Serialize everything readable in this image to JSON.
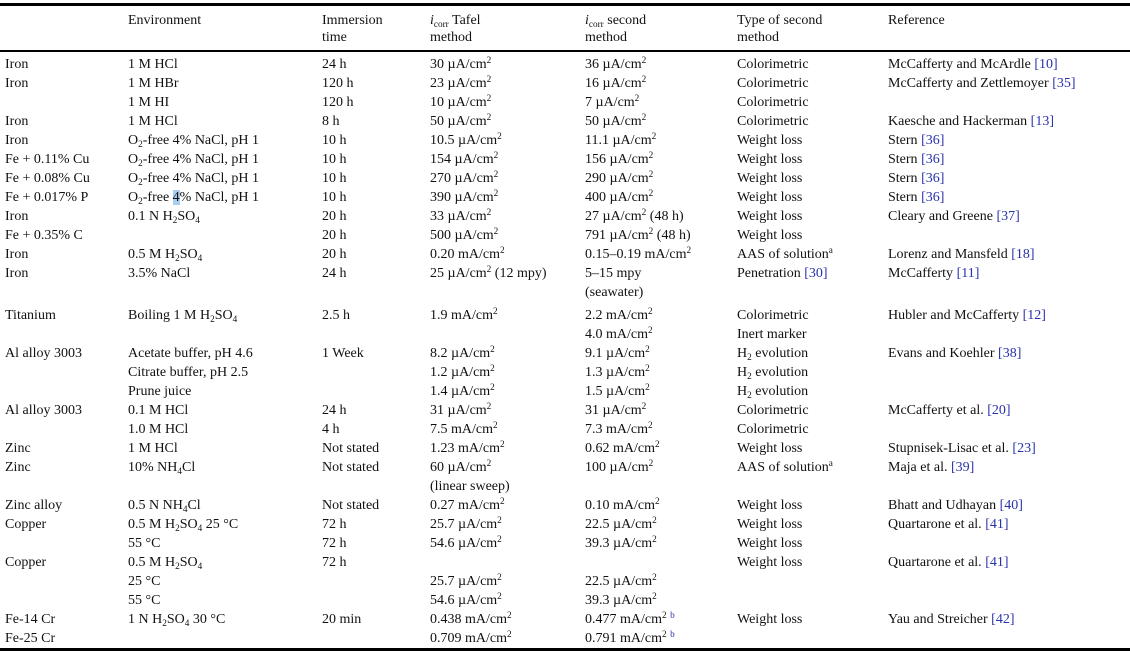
{
  "styles": {
    "citation_color": "#2832aa",
    "search_highlight_color": "#a9cdeb",
    "rule_color": "#000000",
    "text_color": "#111111"
  },
  "table": {
    "columns": [
      {
        "key": "material",
        "label": ""
      },
      {
        "key": "environment",
        "label": "Environment"
      },
      {
        "key": "immersion",
        "label": "Immersion time"
      },
      {
        "key": "tafel",
        "label": "*i*~corr~ Tafel method"
      },
      {
        "key": "second",
        "label": "*i*~corr~ second method"
      },
      {
        "key": "type",
        "label": "Type of second method"
      },
      {
        "key": "reference",
        "label": "Reference"
      }
    ],
    "rows": [
      {
        "cells": [
          "Iron",
          "1 M HCl",
          "24 h",
          "30 µA/cm^2^",
          "36 µA/cm^2^",
          "Colorimetric",
          "McCafferty and McArdle @[10]@"
        ]
      },
      {
        "cells": [
          "Iron",
          "1 M HBr",
          "120 h",
          "23 µA/cm^2^",
          "16 µA/cm^2^",
          "Colorimetric",
          "McCafferty and Zettlemoyer @[35]@"
        ]
      },
      {
        "cells": [
          "",
          "1 M HI",
          "120 h",
          "10 µA/cm^2^",
          "7 µA/cm^2^",
          "Colorimetric",
          ""
        ]
      },
      {
        "cells": [
          "Iron",
          "1 M HCl",
          "8 h",
          "50 µA/cm^2^",
          "50 µA/cm^2^",
          "Colorimetric",
          "Kaesche and Hackerman @[13]@"
        ]
      },
      {
        "cells": [
          "Iron",
          "O~2~-free 4% NaCl, pH 1",
          "10 h",
          "10.5 µA/cm^2^",
          "11.1 µA/cm^2^",
          "Weight loss",
          "Stern @[36]@"
        ]
      },
      {
        "cells": [
          "Fe + 0.11% Cu",
          "O~2~-free 4% NaCl, pH 1",
          "10 h",
          "154 µA/cm^2^",
          "156 µA/cm^2^",
          "Weight loss",
          "Stern @[36]@"
        ]
      },
      {
        "cells": [
          "Fe + 0.08% Cu",
          "O~2~-free 4% NaCl, pH 1",
          "10 h",
          "270 µA/cm^2^",
          "290 µA/cm^2^",
          "Weight loss",
          "Stern @[36]@"
        ]
      },
      {
        "cells": [
          "Fe + 0.017% P",
          "O~2~-free {{4}}% NaCl, pH 1",
          "10 h",
          "390 µA/cm^2^",
          "400 µA/cm^2^",
          "Weight loss",
          "Stern @[36]@"
        ]
      },
      {
        "cells": [
          "Iron",
          "0.1 N H~2~SO~4~",
          "20 h",
          "33 µA/cm^2^",
          "27 µA/cm^2^ (48 h)",
          "Weight loss",
          "Cleary and Greene @[37]@"
        ]
      },
      {
        "cells": [
          "Fe + 0.35% C",
          "",
          "20 h",
          "500 µA/cm^2^",
          "791 µA/cm^2^ (48 h)",
          "Weight loss",
          ""
        ]
      },
      {
        "cells": [
          "Iron",
          "0.5 M H~2~SO~4~",
          "20 h",
          "0.20 mA/cm^2^",
          "0.15–0.19 mA/cm^2^",
          "AAS of solution^a^",
          "Lorenz and Mansfeld @[18]@"
        ]
      },
      {
        "cells": [
          "Iron",
          "3.5% NaCl",
          "24 h",
          "25 µA/cm^2^ (12 mpy)",
          "5–15 mpy",
          "Penetration @[30]@",
          "McCafferty @[11]@"
        ]
      },
      {
        "cells": [
          "",
          "",
          "",
          "",
          "(seawater)",
          "",
          ""
        ]
      },
      {
        "gap_before": true,
        "cells": [
          "Titanium",
          "Boiling 1 M H~2~SO~4~",
          "2.5 h",
          "1.9 mA/cm^2^",
          "2.2 mA/cm^2^",
          "Colorimetric",
          "Hubler and McCafferty @[12]@"
        ]
      },
      {
        "cells": [
          "",
          "",
          "",
          "",
          "4.0 mA/cm^2^",
          "Inert marker",
          ""
        ]
      },
      {
        "cells": [
          "Al alloy 3003",
          "Acetate buffer, pH 4.6",
          "1 Week",
          "8.2 µA/cm^2^",
          "9.1 µA/cm^2^",
          "H~2~ evolution",
          "Evans and Koehler @[38]@"
        ]
      },
      {
        "cells": [
          "",
          "Citrate buffer, pH 2.5",
          "",
          "1.2 µA/cm^2^",
          "1.3 µA/cm^2^",
          "H~2~ evolution",
          ""
        ]
      },
      {
        "cells": [
          "",
          "Prune juice",
          "",
          "1.4 µA/cm^2^",
          "1.5 µA/cm^2^",
          "H~2~ evolution",
          ""
        ]
      },
      {
        "cells": [
          "Al alloy 3003",
          "0.1 M HCl",
          "24 h",
          "31 µA/cm^2^",
          "31 µA/cm^2^",
          "Colorimetric",
          "McCafferty et al. @[20]@"
        ]
      },
      {
        "cells": [
          "",
          "1.0 M HCl",
          "4 h",
          "7.5 mA/cm^2^",
          "7.3 mA/cm^2^",
          "Colorimetric",
          ""
        ]
      },
      {
        "cells": [
          "Zinc",
          "1 M HCl",
          "Not stated",
          "1.23 mA/cm^2^",
          "0.62 mA/cm^2^",
          "Weight loss",
          "Stupnisek-Lisac et al. @[23]@"
        ]
      },
      {
        "cells": [
          "Zinc",
          "10% NH~4~Cl",
          "Not stated",
          "60 µA/cm^2^",
          "100 µA/cm^2^",
          "AAS of solution^a^",
          "Maja et al. @[39]@"
        ]
      },
      {
        "cells": [
          "",
          "",
          "",
          "(linear sweep)",
          "",
          "",
          ""
        ]
      },
      {
        "cells": [
          "Zinc alloy",
          "0.5 N NH~4~Cl",
          "Not stated",
          "0.27 mA/cm^2^",
          "0.10 mA/cm^2^",
          "Weight loss",
          "Bhatt and Udhayan @[40]@"
        ]
      },
      {
        "cells": [
          "Copper",
          "0.5 M H~2~SO~4~ 25 °C",
          "72 h",
          "25.7 µA/cm^2^",
          "22.5 µA/cm^2^",
          "Weight loss",
          "Quartarone et al. @[41]@"
        ]
      },
      {
        "cells": [
          "",
          "55 °C",
          "72 h",
          "54.6 µA/cm^2^",
          "39.3 µA/cm^2^",
          "Weight loss",
          ""
        ]
      },
      {
        "cells": [
          "Copper",
          "0.5 M H~2~SO~4~",
          "72 h",
          "",
          "",
          "Weight loss",
          "Quartarone et al. @[41]@"
        ]
      },
      {
        "cells": [
          "",
          "25 °C",
          "",
          "25.7 µA/cm^2^",
          "22.5 µA/cm^2^",
          "",
          ""
        ]
      },
      {
        "cells": [
          "",
          "55 °C",
          "",
          "54.6 µA/cm^2^",
          "39.3 µA/cm^2^",
          "",
          ""
        ]
      },
      {
        "cells": [
          "Fe-14 Cr",
          "1 N H~2~SO~4~ 30 °C",
          "20 min",
          "0.438 mA/cm^2^",
          "0.477 mA/cm^2^ %b%",
          "Weight loss",
          "Yau and Streicher @[42]@"
        ]
      },
      {
        "cells": [
          "Fe-25 Cr",
          "",
          "",
          "0.709 mA/cm^2^",
          "0.791 mA/cm^2^ %b%",
          "",
          ""
        ]
      }
    ]
  }
}
